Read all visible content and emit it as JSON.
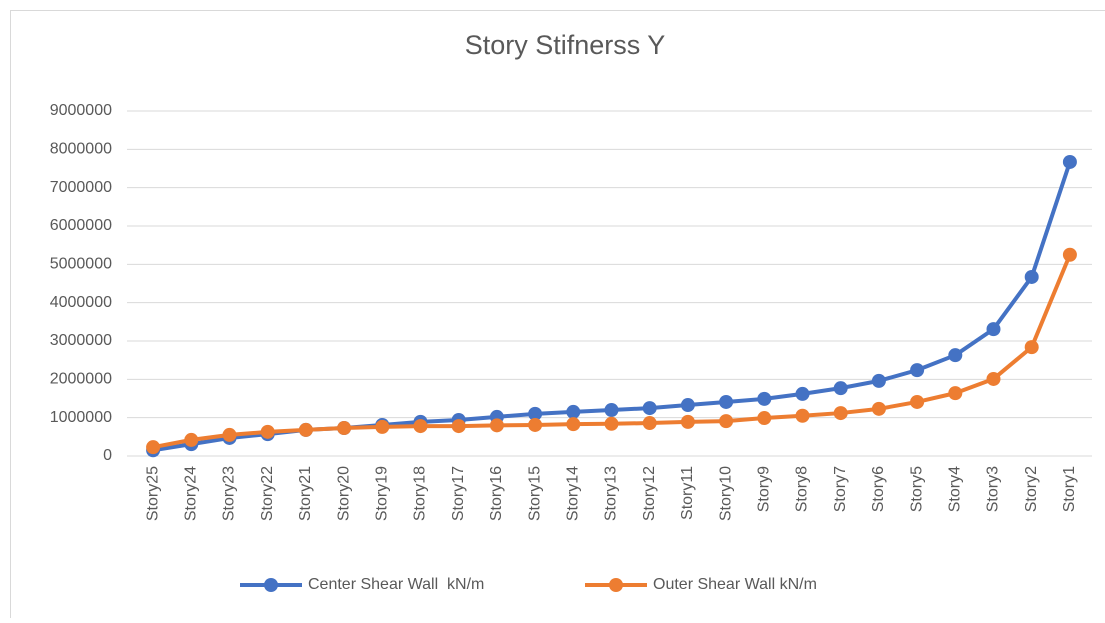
{
  "chart_data": {
    "type": "line",
    "title": "Story Stifnerss Y",
    "categories": [
      "Story25",
      "Story24",
      "Story23",
      "Story22",
      "Story21",
      "Story20",
      "Story19",
      "Story18",
      "Story17",
      "Story16",
      "Story15",
      "Story14",
      "Story13",
      "Story12",
      "Story11",
      "Story10",
      "Story9",
      "Story8",
      "Story7",
      "Story6",
      "Story5",
      "Story4",
      "Story3",
      "Story2",
      "Story1"
    ],
    "series": [
      {
        "name": "Center Shear Wall  kN/m",
        "color": "#4472c4",
        "values": [
          150000,
          310000,
          470000,
          570000,
          680000,
          730000,
          810000,
          890000,
          940000,
          1020000,
          1100000,
          1150000,
          1200000,
          1250000,
          1330000,
          1410000,
          1490000,
          1620000,
          1770000,
          1960000,
          2240000,
          2630000,
          3310000,
          4670000,
          7670000
        ]
      },
      {
        "name": "Outer Shear Wall kN/m",
        "color": "#ed7d31",
        "values": [
          230000,
          420000,
          550000,
          630000,
          680000,
          730000,
          760000,
          780000,
          780000,
          800000,
          810000,
          830000,
          840000,
          860000,
          890000,
          910000,
          990000,
          1050000,
          1120000,
          1230000,
          1410000,
          1640000,
          2010000,
          2840000,
          5250000
        ]
      }
    ],
    "ylim": [
      0,
      9000000
    ],
    "yticks": [
      0,
      1000000,
      2000000,
      3000000,
      4000000,
      5000000,
      6000000,
      7000000,
      8000000,
      9000000
    ],
    "grid": true,
    "legend": "bottom"
  }
}
